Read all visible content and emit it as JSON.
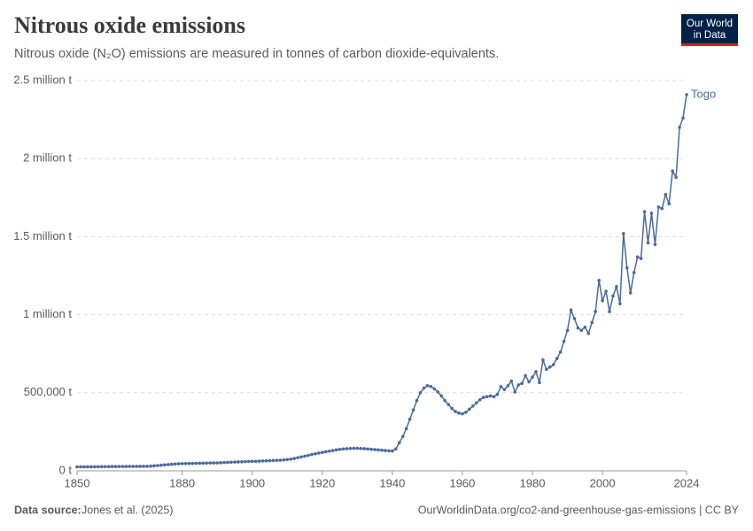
{
  "header": {
    "title": "Nitrous oxide emissions",
    "subtitle": "Nitrous oxide (N₂O) emissions are measured in tonnes of carbon dioxide-equivalents.",
    "logo": [
      "Our World",
      "in Data"
    ]
  },
  "footer": {
    "source_label": "Data source:",
    "source": "Jones et al. (2025)",
    "url": "OurWorldinData.org/co2-and-greenhouse-gas-emissions | CC BY"
  },
  "chart_data": {
    "type": "line",
    "grid": true,
    "xlim": [
      1850,
      2024
    ],
    "xticks": [
      1850,
      1880,
      1900,
      1920,
      1940,
      1960,
      1980,
      2000,
      2024
    ],
    "ylim": [
      0,
      2500000
    ],
    "yticks": [
      {
        "value": 0,
        "label": "0 t"
      },
      {
        "value": 500000,
        "label": "500,000 t"
      },
      {
        "value": 1000000,
        "label": "1 million t"
      },
      {
        "value": 1500000,
        "label": "1.5 million t"
      },
      {
        "value": 2000000,
        "label": "2 million t"
      },
      {
        "value": 2500000,
        "label": "2.5 million t"
      }
    ],
    "x": [
      1850,
      1851,
      1852,
      1853,
      1854,
      1855,
      1856,
      1857,
      1858,
      1859,
      1860,
      1861,
      1862,
      1863,
      1864,
      1865,
      1866,
      1867,
      1868,
      1869,
      1870,
      1871,
      1872,
      1873,
      1874,
      1875,
      1876,
      1877,
      1878,
      1879,
      1880,
      1881,
      1882,
      1883,
      1884,
      1885,
      1886,
      1887,
      1888,
      1889,
      1890,
      1891,
      1892,
      1893,
      1894,
      1895,
      1896,
      1897,
      1898,
      1899,
      1900,
      1901,
      1902,
      1903,
      1904,
      1905,
      1906,
      1907,
      1908,
      1909,
      1910,
      1911,
      1912,
      1913,
      1914,
      1915,
      1916,
      1917,
      1918,
      1919,
      1920,
      1921,
      1922,
      1923,
      1924,
      1925,
      1926,
      1927,
      1928,
      1929,
      1930,
      1931,
      1932,
      1933,
      1934,
      1935,
      1936,
      1937,
      1938,
      1939,
      1940,
      1941,
      1942,
      1943,
      1944,
      1945,
      1946,
      1947,
      1948,
      1949,
      1950,
      1951,
      1952,
      1953,
      1954,
      1955,
      1956,
      1957,
      1958,
      1959,
      1960,
      1961,
      1962,
      1963,
      1964,
      1965,
      1966,
      1967,
      1968,
      1969,
      1970,
      1971,
      1972,
      1973,
      1974,
      1975,
      1976,
      1977,
      1978,
      1979,
      1980,
      1981,
      1982,
      1983,
      1984,
      1985,
      1986,
      1987,
      1988,
      1989,
      1990,
      1991,
      1992,
      1993,
      1994,
      1995,
      1996,
      1997,
      1998,
      1999,
      2000,
      2001,
      2002,
      2003,
      2004,
      2005,
      2006,
      2007,
      2008,
      2009,
      2010,
      2011,
      2012,
      2013,
      2014,
      2015,
      2016,
      2017,
      2018,
      2019,
      2020,
      2021,
      2022,
      2023,
      2024
    ],
    "series": [
      {
        "name": "Togo",
        "color": "#4c6a9c",
        "values": [
          25000,
          25200,
          25400,
          25600,
          25800,
          26000,
          26200,
          26400,
          26600,
          26800,
          27000,
          27200,
          27400,
          27600,
          27800,
          28000,
          28200,
          28400,
          28600,
          28800,
          29000,
          30000,
          32000,
          34000,
          36000,
          38000,
          40000,
          42000,
          44000,
          45000,
          46000,
          46500,
          47000,
          47500,
          48000,
          48500,
          49000,
          49500,
          50000,
          50500,
          51000,
          52000,
          53000,
          54000,
          55000,
          56000,
          57000,
          58000,
          59000,
          60000,
          60500,
          61000,
          62000,
          63000,
          64000,
          65000,
          66000,
          67000,
          68000,
          70000,
          72000,
          75000,
          79000,
          84000,
          89000,
          94000,
          99000,
          104000,
          109000,
          114000,
          118000,
          122000,
          126000,
          130000,
          134000,
          137000,
          140000,
          142000,
          143000,
          144000,
          144000,
          143000,
          142000,
          140000,
          138000,
          136000,
          134000,
          132000,
          130000,
          128000,
          127000,
          140000,
          180000,
          220000,
          270000,
          330000,
          390000,
          450000,
          500000,
          530000,
          545000,
          540000,
          525000,
          505000,
          480000,
          450000,
          425000,
          400000,
          380000,
          370000,
          365000,
          375000,
          395000,
          415000,
          435000,
          455000,
          470000,
          475000,
          480000,
          475000,
          490000,
          540000,
          520000,
          545000,
          575000,
          505000,
          550000,
          560000,
          610000,
          570000,
          600000,
          635000,
          565000,
          710000,
          650000,
          665000,
          680000,
          720000,
          760000,
          830000,
          900000,
          1030000,
          975000,
          915000,
          900000,
          920000,
          880000,
          950000,
          1020000,
          1220000,
          1090000,
          1150000,
          1020000,
          1120000,
          1180000,
          1070000,
          1520000,
          1300000,
          1140000,
          1270000,
          1370000,
          1360000,
          1660000,
          1460000,
          1650000,
          1450000,
          1690000,
          1680000,
          1770000,
          1710000,
          1920000,
          1880000,
          2200000,
          2260000,
          2410000
        ]
      }
    ]
  }
}
